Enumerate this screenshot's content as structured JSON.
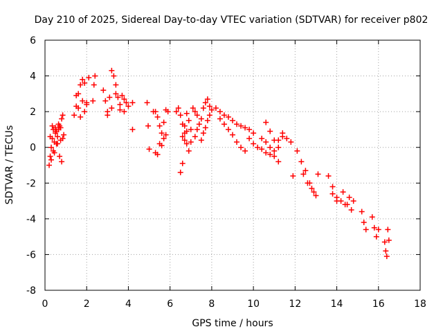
{
  "chart_data": {
    "type": "scatter",
    "title": "Day 210 of 2025, Sidereal Day-to-day VTEC variation (SDTVAR) for receiver p802",
    "xlabel": "GPS time / hours",
    "ylabel": "SDTVAR / TECUs",
    "xlim": [
      0,
      18
    ],
    "ylim": [
      -8,
      6
    ],
    "xticks": [
      0,
      2,
      4,
      6,
      8,
      10,
      12,
      14,
      16,
      18
    ],
    "yticks": [
      -8,
      -6,
      -4,
      -2,
      0,
      2,
      4,
      6
    ],
    "xtick_labels": [
      "0",
      "2",
      "4",
      "6",
      "8",
      "10",
      "12",
      "14",
      "16",
      "18"
    ],
    "ytick_labels": [
      "-8",
      "-6",
      "-4",
      "-2",
      "0",
      "2",
      "4",
      "6"
    ],
    "grid": true,
    "marker": "+",
    "series_color": "#ff0000",
    "series": [
      {
        "name": "SDTVAR",
        "x": [
          0.2,
          0.25,
          0.3,
          0.35,
          0.4,
          0.45,
          0.5,
          0.55,
          0.6,
          0.65,
          0.7,
          0.75,
          0.8,
          0.85,
          0.9,
          0.3,
          0.4,
          0.5,
          0.6,
          0.7,
          0.8,
          0.25,
          0.35,
          0.45,
          0.55,
          0.65,
          0.75,
          0.85,
          1.4,
          1.5,
          1.6,
          1.7,
          1.8,
          1.9,
          2.0,
          2.1,
          1.5,
          1.6,
          1.7,
          1.8,
          1.9,
          2.0,
          2.4,
          2.35,
          2.3,
          2.8,
          2.9,
          3.0,
          3.1,
          3.2,
          3.3,
          3.4,
          3.5,
          3.6,
          3.7,
          3.8,
          3.9,
          4.0,
          4.2,
          3.0,
          3.2,
          3.4,
          3.6,
          3.8,
          4.2,
          4.9,
          4.95,
          5.0,
          5.3,
          5.4,
          5.5,
          5.6,
          5.7,
          5.8,
          5.9,
          5.2,
          5.3,
          5.4,
          5.5,
          5.6,
          5.7,
          5.8,
          6.3,
          6.4,
          6.5,
          6.6,
          6.7,
          6.8,
          6.9,
          7.0,
          6.5,
          6.6,
          6.7,
          6.8,
          6.9,
          7.0,
          6.6,
          6.7,
          6.8,
          7.1,
          7.2,
          7.3,
          7.2,
          7.3,
          7.4,
          7.5,
          7.6,
          7.7,
          7.8,
          7.9,
          7.5,
          7.6,
          7.7,
          7.8,
          7.9,
          8.0,
          8.2,
          8.4,
          8.6,
          8.8,
          9.0,
          9.2,
          9.4,
          9.6,
          9.8,
          10.0,
          8.4,
          8.6,
          8.8,
          9.0,
          9.2,
          9.4,
          9.6,
          9.8,
          10.0,
          10.2,
          10.4,
          10.6,
          10.8,
          11.0,
          11.2,
          11.4,
          10.4,
          10.6,
          10.8,
          11.0,
          11.2,
          10.6,
          10.8,
          11.0,
          11.2,
          11.4,
          11.6,
          11.8,
          11.9,
          12.1,
          12.3,
          12.5,
          12.7,
          12.9,
          13.1,
          12.4,
          12.6,
          12.8,
          13.0,
          13.6,
          13.8,
          14.0,
          14.2,
          14.4,
          13.8,
          14.0,
          14.3,
          14.6,
          14.8,
          14.5,
          14.7,
          15.2,
          15.3,
          15.4,
          15.7,
          15.8,
          15.9,
          16.0,
          16.3,
          16.35,
          16.4,
          16.45,
          16.5
        ],
        "y": [
          -1.0,
          -0.5,
          0.0,
          0.5,
          1.0,
          0.3,
          0.8,
          0.2,
          0.6,
          1.0,
          1.2,
          0.4,
          1.6,
          1.8,
          0.7,
          -0.7,
          -0.2,
          1.1,
          0.2,
          -0.5,
          -0.8,
          0.6,
          1.2,
          -0.3,
          0.9,
          1.3,
          1.1,
          0.5,
          1.8,
          2.3,
          3.0,
          3.5,
          3.8,
          3.6,
          2.5,
          3.9,
          2.9,
          2.2,
          1.7,
          2.6,
          2.0,
          2.4,
          4.0,
          3.5,
          2.6,
          3.2,
          2.6,
          2.0,
          2.8,
          4.3,
          4.0,
          3.5,
          2.8,
          2.4,
          2.9,
          2.0,
          2.5,
          2.3,
          2.5,
          1.8,
          2.2,
          3.0,
          2.1,
          2.7,
          1.0,
          2.5,
          1.2,
          -0.1,
          -0.3,
          -0.4,
          0.2,
          0.1,
          0.5,
          0.7,
          2.0,
          2.0,
          2.0,
          1.7,
          1.2,
          0.8,
          1.4,
          2.1,
          2.0,
          2.2,
          1.8,
          1.3,
          0.8,
          0.2,
          -0.2,
          0.3,
          -1.4,
          -0.9,
          0.4,
          0.9,
          1.5,
          1.0,
          0.6,
          1.2,
          1.9,
          2.2,
          2.0,
          1.8,
          0.6,
          1.0,
          1.3,
          1.6,
          2.2,
          2.5,
          2.7,
          2.3,
          0.4,
          0.8,
          1.1,
          1.5,
          1.8,
          2.1,
          2.2,
          2.0,
          1.8,
          1.7,
          1.5,
          1.3,
          1.2,
          1.1,
          1.0,
          0.8,
          1.6,
          1.3,
          1.0,
          0.7,
          0.3,
          0.0,
          -0.2,
          0.5,
          0.2,
          0.0,
          -0.1,
          -0.3,
          -0.4,
          -0.2,
          0.4,
          0.6,
          0.5,
          0.3,
          0.0,
          -0.5,
          -0.8,
          1.4,
          0.9,
          0.4,
          0.0,
          0.8,
          0.5,
          0.3,
          -1.6,
          -0.2,
          -0.8,
          -1.3,
          -2.0,
          -2.5,
          -1.5,
          -1.5,
          -2.0,
          -2.3,
          -2.7,
          -1.6,
          -2.2,
          -2.8,
          -3.0,
          -3.2,
          -2.6,
          -3.0,
          -2.5,
          -2.8,
          -3.0,
          -3.2,
          -3.5,
          -3.6,
          -4.2,
          -4.6,
          -3.9,
          -4.5,
          -5.0,
          -4.6,
          -5.3,
          -5.8,
          -6.1,
          -4.6,
          -5.2
        ]
      }
    ]
  }
}
